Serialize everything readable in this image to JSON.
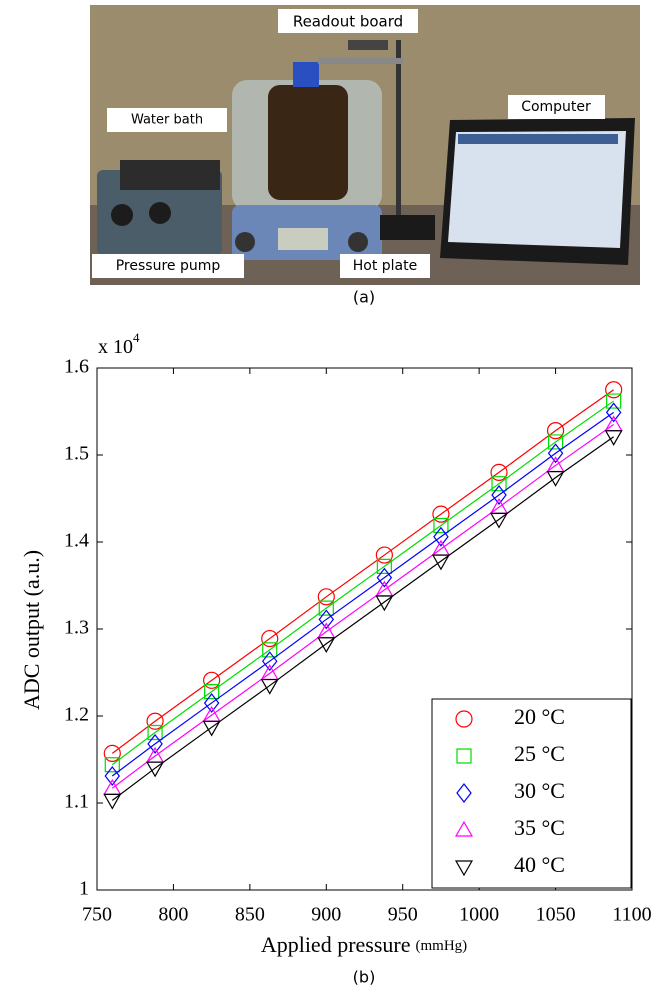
{
  "photo": {
    "labels": [
      "Readout board",
      "Water bath",
      "Computer",
      "Pressure pump",
      "Hot plate"
    ],
    "caption": "(a)"
  },
  "chart_data": {
    "type": "scatter",
    "caption": "(b)",
    "xlabel": "Applied pressure",
    "xlabel_unit": "(mmHg)",
    "ylabel": "ADC output (a.u.)",
    "y_scale_label": {
      "base": "x 10",
      "exponent": "4"
    },
    "x": [
      760,
      788,
      825,
      863,
      900,
      938,
      975,
      1013,
      1050,
      1088
    ],
    "series": [
      {
        "name": "20 °C",
        "color": "#ff0000",
        "marker": "circle",
        "values": [
          1.157,
          1.194,
          1.241,
          1.289,
          1.337,
          1.385,
          1.432,
          1.48,
          1.528,
          1.575
        ]
      },
      {
        "name": "25 °C",
        "color": "#00dd00",
        "marker": "square",
        "values": [
          1.144,
          1.181,
          1.228,
          1.276,
          1.324,
          1.372,
          1.419,
          1.467,
          1.515,
          1.562
        ]
      },
      {
        "name": "30 °C",
        "color": "#0000ff",
        "marker": "diamond",
        "values": [
          1.131,
          1.168,
          1.215,
          1.263,
          1.311,
          1.359,
          1.406,
          1.454,
          1.502,
          1.549
        ]
      },
      {
        "name": "35 °C",
        "color": "#ff00ff",
        "marker": "triangle-up",
        "values": [
          1.117,
          1.154,
          1.201,
          1.249,
          1.297,
          1.345,
          1.392,
          1.44,
          1.488,
          1.535
        ]
      },
      {
        "name": "40 °C",
        "color": "#000000",
        "marker": "triangle-down",
        "values": [
          1.103,
          1.14,
          1.187,
          1.235,
          1.283,
          1.331,
          1.378,
          1.426,
          1.474,
          1.521
        ]
      }
    ],
    "xlim": [
      750,
      1100
    ],
    "xticks": [
      750,
      800,
      850,
      900,
      950,
      1000,
      1050,
      1100
    ],
    "ylim": [
      1,
      1.6
    ],
    "yticks": [
      1,
      1.1,
      1.2,
      1.3,
      1.4,
      1.5,
      1.6
    ],
    "grid": false,
    "fit_lines": true,
    "legend": "lower right"
  }
}
